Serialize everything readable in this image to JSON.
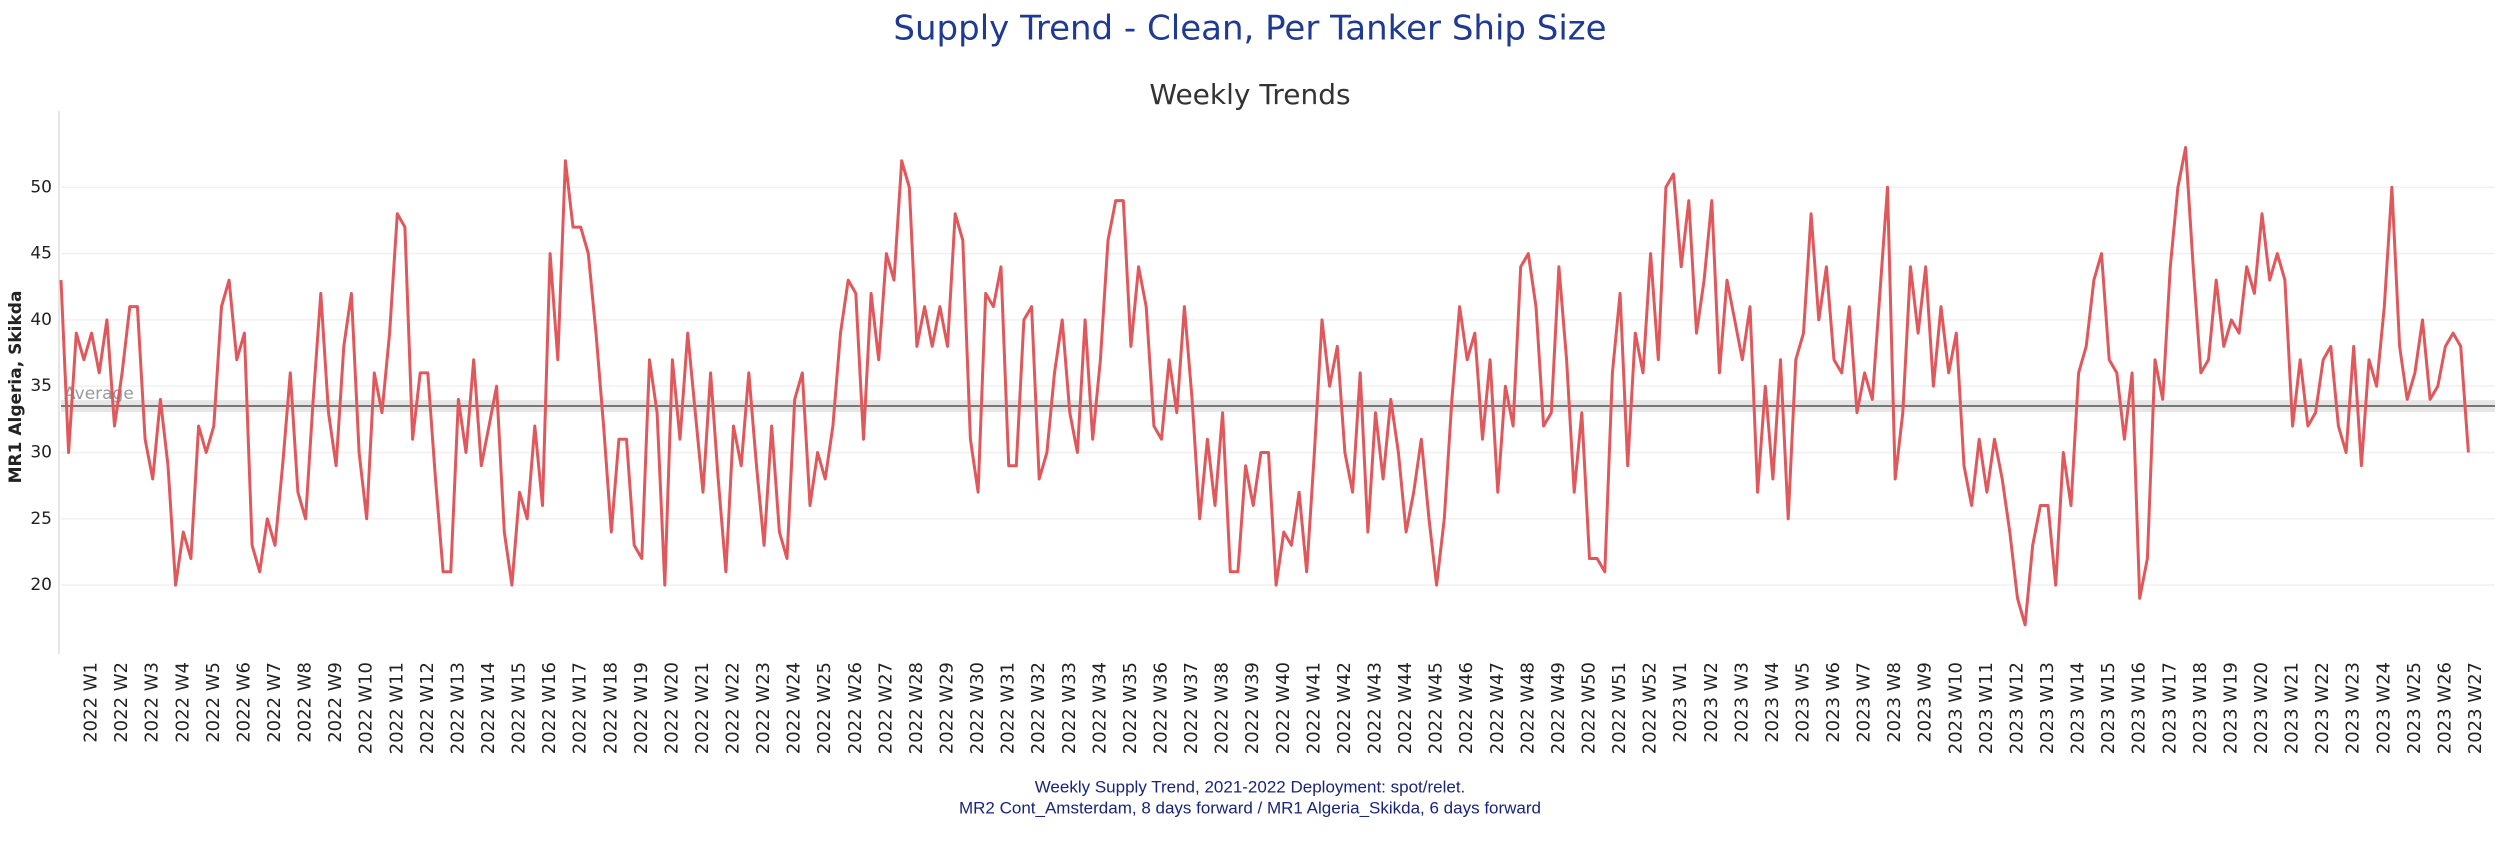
{
  "chart_data": {
    "type": "line",
    "title": "Supply Trend - Clean, Per Tanker Ship Size",
    "subtitle": "Weekly Trends",
    "y_label": "MR1 Algeria, Skikda",
    "footer": [
      "Weekly Supply Trend, 2021-2022 Deployment: spot/relet.",
      "MR2 Cont_Amsterdam, 8 days forward / MR1 Algeria_Skikda, 6 days forward"
    ],
    "reference_line": {
      "label": "Average",
      "value": 33.5
    },
    "ylim": [
      14.8,
      55
    ],
    "yticks": [
      20,
      25,
      30,
      35,
      40,
      45,
      50
    ],
    "grid": true,
    "categories": [
      null,
      null,
      null,
      null,
      "2022 W1",
      null,
      null,
      null,
      "2022 W2",
      null,
      null,
      null,
      "2022 W3",
      null,
      null,
      null,
      "2022 W4",
      null,
      null,
      null,
      "2022 W5",
      null,
      null,
      null,
      "2022 W6",
      null,
      null,
      null,
      "2022 W7",
      null,
      null,
      null,
      "2022 W8",
      null,
      null,
      null,
      "2022 W9",
      null,
      null,
      null,
      "2022 W10",
      null,
      null,
      null,
      "2022 W11",
      null,
      null,
      null,
      "2022 W12",
      null,
      null,
      null,
      "2022 W13",
      null,
      null,
      null,
      "2022 W14",
      null,
      null,
      null,
      "2022 W15",
      null,
      null,
      null,
      "2022 W16",
      null,
      null,
      null,
      "2022 W17",
      null,
      null,
      null,
      "2022 W18",
      null,
      null,
      null,
      "2022 W19",
      null,
      null,
      null,
      "2022 W20",
      null,
      null,
      null,
      "2022 W21",
      null,
      null,
      null,
      "2022 W22",
      null,
      null,
      null,
      "2022 W23",
      null,
      null,
      null,
      "2022 W24",
      null,
      null,
      null,
      "2022 W25",
      null,
      null,
      null,
      "2022 W26",
      null,
      null,
      null,
      "2022 W27",
      null,
      null,
      null,
      "2022 W28",
      null,
      null,
      null,
      "2022 W29",
      null,
      null,
      null,
      "2022 W30",
      null,
      null,
      null,
      "2022 W31",
      null,
      null,
      null,
      "2022 W32",
      null,
      null,
      null,
      "2022 W33",
      null,
      null,
      null,
      "2022 W34",
      null,
      null,
      null,
      "2022 W35",
      null,
      null,
      null,
      "2022 W36",
      null,
      null,
      null,
      "2022 W37",
      null,
      null,
      null,
      "2022 W38",
      null,
      null,
      null,
      "2022 W39",
      null,
      null,
      null,
      "2022 W40",
      null,
      null,
      null,
      "2022 W41",
      null,
      null,
      null,
      "2022 W42",
      null,
      null,
      null,
      "2022 W43",
      null,
      null,
      null,
      "2022 W44",
      null,
      null,
      null,
      "2022 W45",
      null,
      null,
      null,
      "2022 W46",
      null,
      null,
      null,
      "2022 W47",
      null,
      null,
      null,
      "2022 W48",
      null,
      null,
      null,
      "2022 W49",
      null,
      null,
      null,
      "2022 W50",
      null,
      null,
      null,
      "2022 W51",
      null,
      null,
      null,
      "2022 W52",
      null,
      null,
      null,
      "2023 W1",
      null,
      null,
      null,
      "2023 W2",
      null,
      null,
      null,
      "2023 W3",
      null,
      null,
      null,
      "2023 W4",
      null,
      null,
      null,
      "2023 W5",
      null,
      null,
      null,
      "2023 W6",
      null,
      null,
      null,
      "2023 W7",
      null,
      null,
      null,
      "2023 W8",
      null,
      null,
      null,
      "2023 W9",
      null,
      null,
      null,
      "2023 W10",
      null,
      null,
      null,
      "2023 W11",
      null,
      null,
      null,
      "2023 W12",
      null,
      null,
      null,
      "2023 W13",
      null,
      null,
      null,
      "2023 W14",
      null,
      null,
      null,
      "2023 W15",
      null,
      null,
      null,
      "2023 W16",
      null,
      null,
      null,
      "2023 W17",
      null,
      null,
      null,
      "2023 W18",
      null,
      null,
      null,
      "2023 W19",
      null,
      null,
      null,
      "2023 W20",
      null,
      null,
      null,
      "2023 W21",
      null,
      null,
      null,
      "2023 W22",
      null,
      null,
      null,
      "2023 W23",
      null,
      null,
      null,
      "2023 W24",
      null,
      null,
      null,
      "2023 W25",
      null,
      null,
      null,
      "2023 W26",
      null,
      null,
      null,
      "2023 W27"
    ],
    "series": [
      {
        "name": "MR1 Algeria, Skikda",
        "color": "#e0585b",
        "values": [
          43,
          30,
          39,
          37,
          39,
          36,
          40,
          32,
          36,
          41,
          41,
          31,
          28,
          34,
          29,
          20,
          24,
          22,
          32,
          30,
          32,
          41,
          43,
          37,
          39,
          23,
          21,
          25,
          23,
          29,
          36,
          27,
          25,
          34,
          42,
          33,
          29,
          38,
          42,
          30,
          25,
          36,
          33,
          39,
          48,
          47,
          31,
          36,
          36,
          28,
          21,
          21,
          34,
          30,
          37,
          29,
          32,
          35,
          24,
          20,
          27,
          25,
          32,
          26,
          45,
          37,
          52,
          47,
          47,
          45,
          39,
          32,
          24,
          31,
          31,
          23,
          22,
          37,
          33,
          20,
          37,
          31,
          39,
          33,
          27,
          36,
          28,
          21,
          32,
          29,
          36,
          29,
          23,
          32,
          24,
          22,
          34,
          36,
          26,
          30,
          28,
          32,
          39,
          43,
          42,
          31,
          42,
          37,
          45,
          43,
          52,
          50,
          38,
          41,
          38,
          41,
          38,
          48,
          46,
          31,
          27,
          42,
          41,
          44,
          29,
          29,
          40,
          41,
          28,
          30,
          36,
          40,
          33,
          30,
          40,
          31,
          37,
          46,
          49,
          49,
          38,
          44,
          41,
          32,
          31,
          37,
          33,
          41,
          34,
          25,
          31,
          26,
          33,
          21,
          21,
          29,
          26,
          30,
          30,
          20,
          24,
          23,
          27,
          21,
          30,
          40,
          35,
          38,
          30,
          27,
          36,
          24,
          33,
          28,
          34,
          30,
          24,
          27,
          31,
          25,
          20,
          25,
          34,
          41,
          37,
          39,
          31,
          37,
          27,
          35,
          32,
          44,
          45,
          41,
          32,
          33,
          44,
          37,
          27,
          33,
          22,
          22,
          21,
          36,
          42,
          29,
          39,
          36,
          45,
          37,
          50,
          51,
          44,
          49,
          39,
          43,
          49,
          36,
          43,
          40,
          37,
          41,
          27,
          35,
          28,
          37,
          25,
          37,
          39,
          48,
          40,
          44,
          37,
          36,
          41,
          33,
          36,
          34,
          42,
          50,
          28,
          33,
          44,
          39,
          44,
          35,
          41,
          36,
          39,
          29,
          26,
          31,
          27,
          31,
          28,
          24,
          19,
          17,
          23,
          26,
          26,
          20,
          30,
          26,
          36,
          38,
          43,
          45,
          37,
          36,
          31,
          36,
          19,
          22,
          37,
          34,
          44,
          50,
          53,
          44,
          36,
          37,
          43,
          38,
          40,
          39,
          44,
          42,
          48,
          43,
          45,
          43,
          32,
          37,
          32,
          33,
          37,
          38,
          32,
          30,
          38,
          29,
          37,
          35,
          41,
          50,
          38,
          34,
          36,
          40,
          34,
          35,
          38,
          39,
          38,
          30,
          null
        ]
      }
    ]
  }
}
